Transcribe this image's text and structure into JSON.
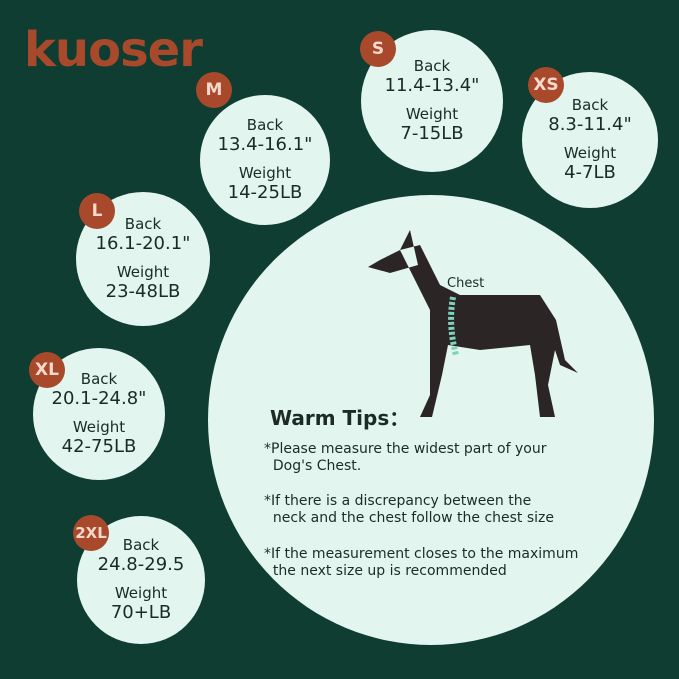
{
  "brand": "kuoser",
  "sizes": [
    {
      "size": "M",
      "back_label": "Back",
      "back": "13.4-16.1\"",
      "weight_label": "Weight",
      "weight": "14-25LB"
    },
    {
      "size": "S",
      "back_label": "Back",
      "back": "11.4-13.4\"",
      "weight_label": "Weight",
      "weight": "7-15LB"
    },
    {
      "size": "XS",
      "back_label": "Back",
      "back": "8.3-11.4\"",
      "weight_label": "Weight",
      "weight": "4-7LB"
    },
    {
      "size": "L",
      "back_label": "Back",
      "back": "16.1-20.1\"",
      "weight_label": "Weight",
      "weight": "23-48LB"
    },
    {
      "size": "XL",
      "back_label": "Back",
      "back": "20.1-24.8\"",
      "weight_label": "Weight",
      "weight": "42-75LB"
    },
    {
      "size": "2XL",
      "back_label": "Back",
      "back": "24.8-29.5",
      "weight_label": "Weight",
      "weight": "70+LB"
    }
  ],
  "diagram": {
    "chest_label": "Chest"
  },
  "tips": {
    "title": "Warm Tips：",
    "items": [
      "*Please measure the widest part of your\n  Dog's Chest.",
      "*If there is a discrepancy between the\n  neck and the chest follow the chest size",
      "*If the measurement closes to the maximum\n  the next size up is recommended"
    ]
  },
  "colors": {
    "background": "#0f3d31",
    "circle": "#e2f5ee",
    "badge": "#a9492c",
    "chest_band": "#7fd1b9"
  }
}
